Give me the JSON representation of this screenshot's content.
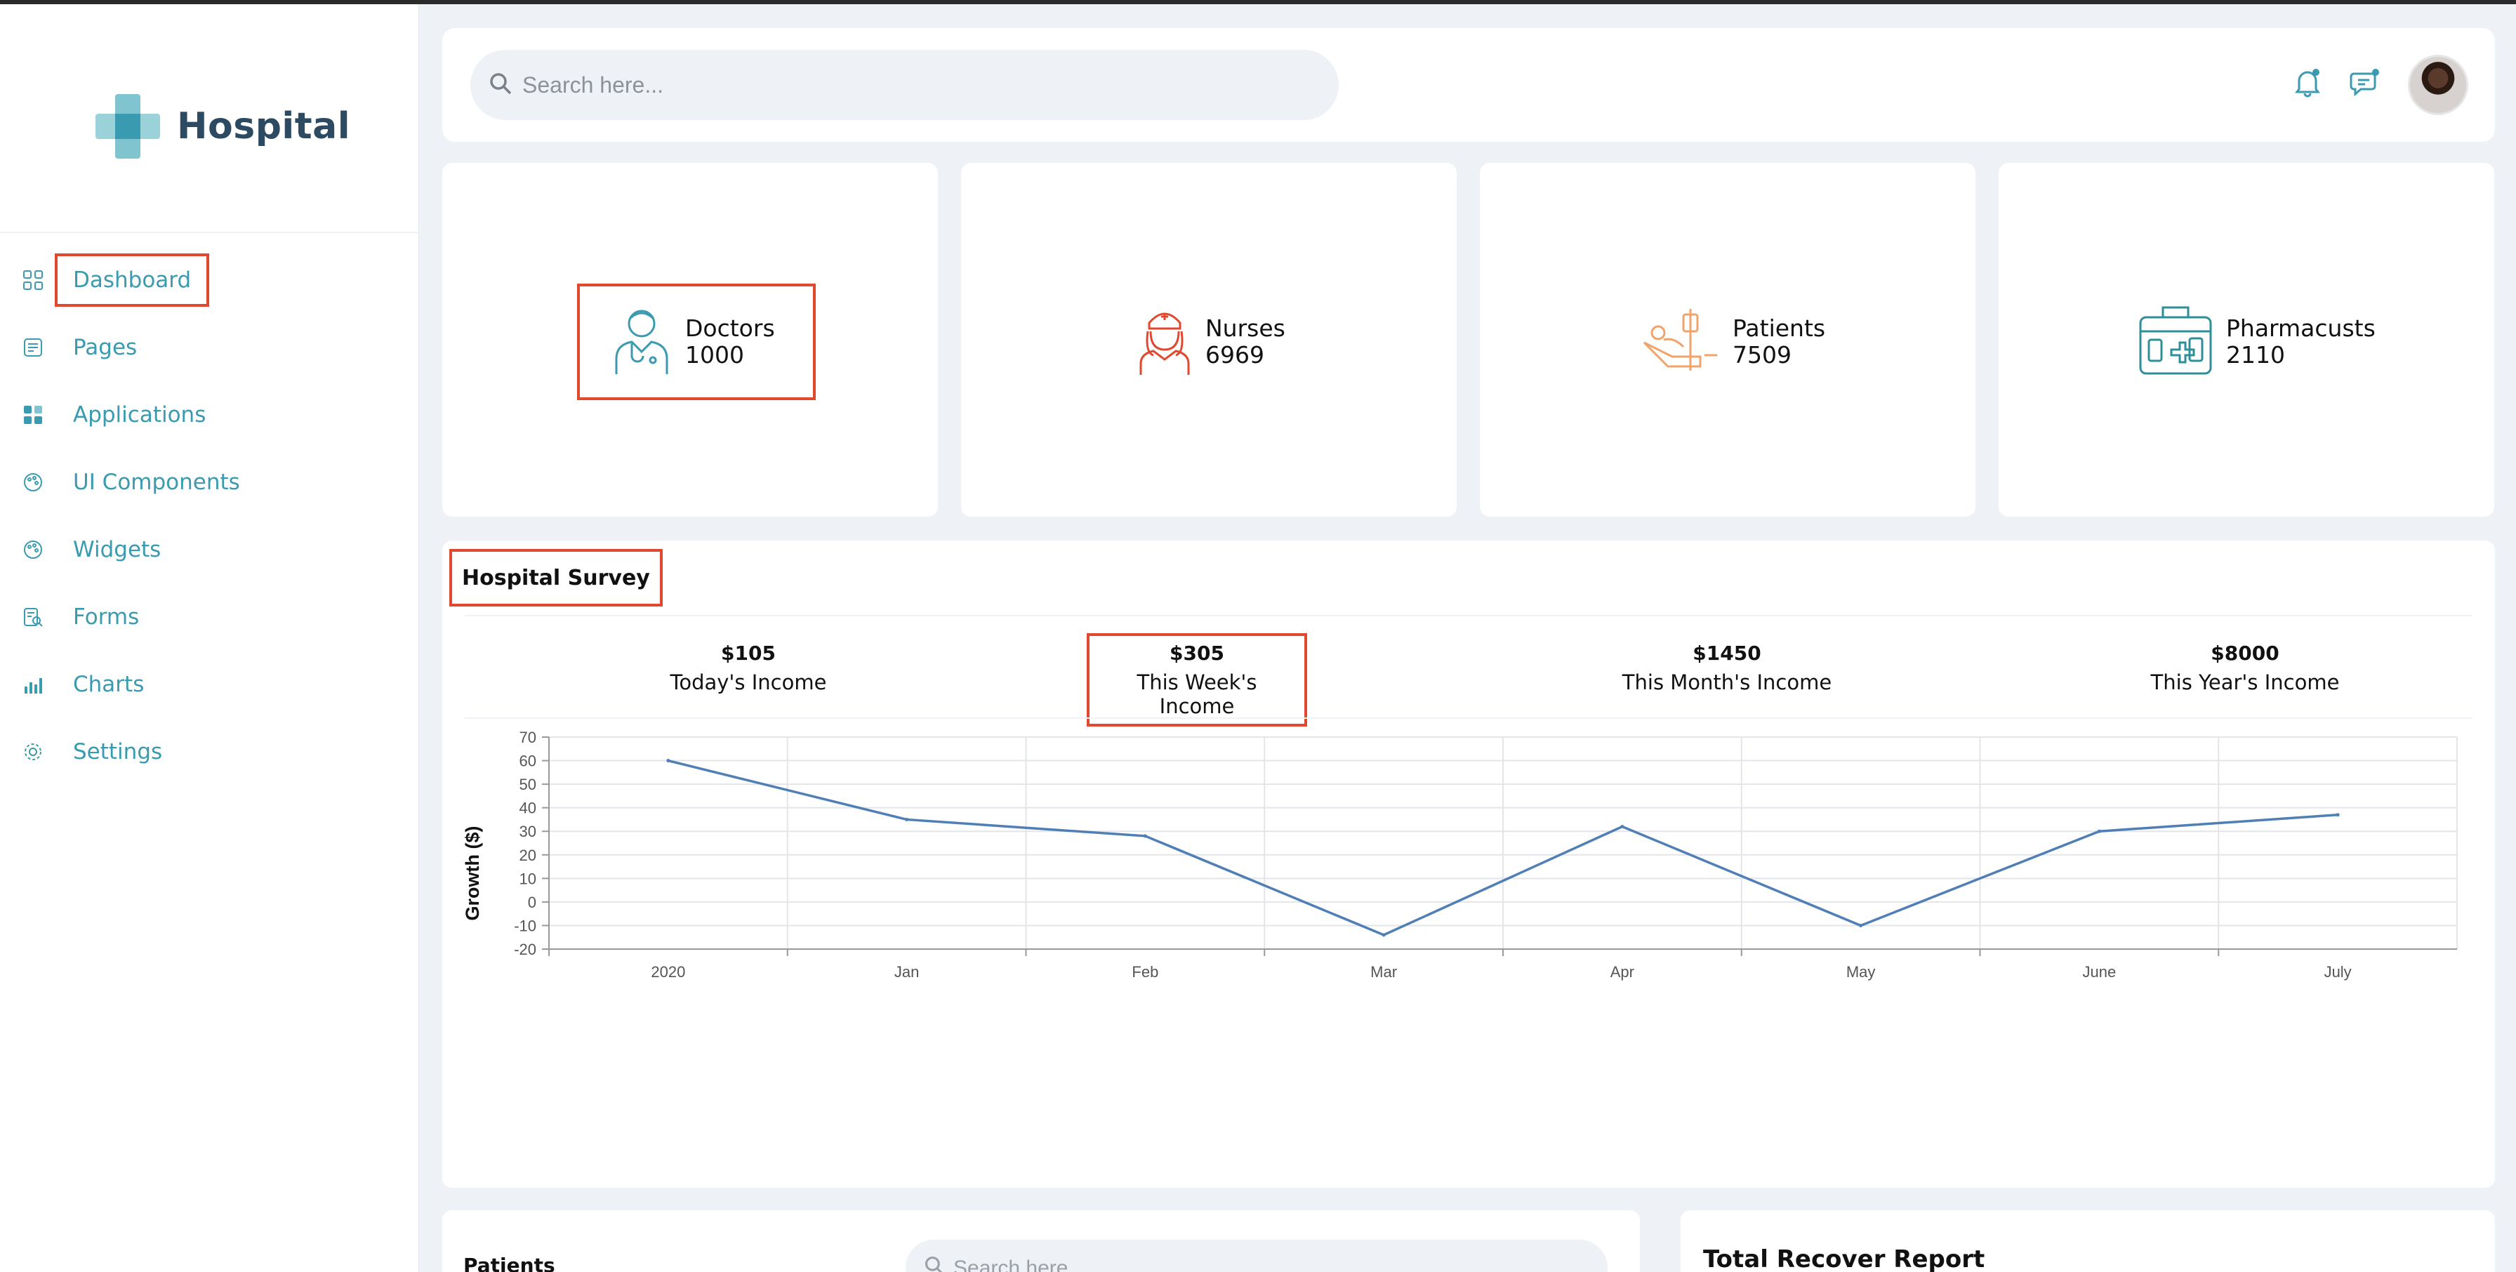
{
  "app": {
    "brand": "Hospital",
    "accent": "#3a9bb0",
    "highlight_color": "#e0492f"
  },
  "sidebar": {
    "items": [
      {
        "label": "Dashboard",
        "icon": "grid-icon"
      },
      {
        "label": "Pages",
        "icon": "pages-icon"
      },
      {
        "label": "Applications",
        "icon": "apps-icon"
      },
      {
        "label": "UI Components",
        "icon": "palette-icon"
      },
      {
        "label": "Widgets",
        "icon": "palette-icon"
      },
      {
        "label": "Forms",
        "icon": "form-search-icon"
      },
      {
        "label": "Charts",
        "icon": "bar-chart-icon"
      },
      {
        "label": "Settings",
        "icon": "gear-icon"
      }
    ]
  },
  "topbar": {
    "search_placeholder": "Search here...",
    "icons": [
      "bell-icon",
      "chat-icon",
      "avatar"
    ]
  },
  "stats": [
    {
      "label": "Doctors",
      "value": "1000",
      "icon": "doctor-icon",
      "color": "#3a9bb0"
    },
    {
      "label": "Nurses",
      "value": "6969",
      "icon": "nurse-icon",
      "color": "#e0492f"
    },
    {
      "label": "Patients",
      "value": "7509",
      "icon": "patient-bed-icon",
      "color": "#f0a36b"
    },
    {
      "label": "Pharmacusts",
      "value": "2110",
      "icon": "medicine-box-icon",
      "color": "#2e8f99"
    }
  ],
  "survey": {
    "title": "Hospital Survey",
    "incomes": [
      {
        "amount": "$105",
        "label": "Today's Income"
      },
      {
        "amount": "$305",
        "label": "This Week's Income"
      },
      {
        "amount": "$1450",
        "label": "This Month's Income"
      },
      {
        "amount": "$8000",
        "label": "This Year's Income"
      }
    ]
  },
  "chart_data": {
    "type": "line",
    "categories": [
      "2020",
      "Jan",
      "Feb",
      "Mar",
      "Apr",
      "May",
      "June",
      "July"
    ],
    "series": [
      {
        "values": [
          60,
          35,
          28,
          -14,
          32,
          -10,
          30,
          37
        ],
        "color": "#4f7fb5"
      }
    ],
    "ylabel": "Growth ($)",
    "ylim": [
      -20,
      70
    ],
    "yticks": [
      70,
      60,
      50,
      40,
      30,
      20,
      10,
      0,
      -10,
      -20
    ],
    "grid": true
  },
  "bottom": {
    "patients_title": "Patients",
    "patients_search_placeholder": "Search here...",
    "recover_title": "Total Recover Report"
  }
}
